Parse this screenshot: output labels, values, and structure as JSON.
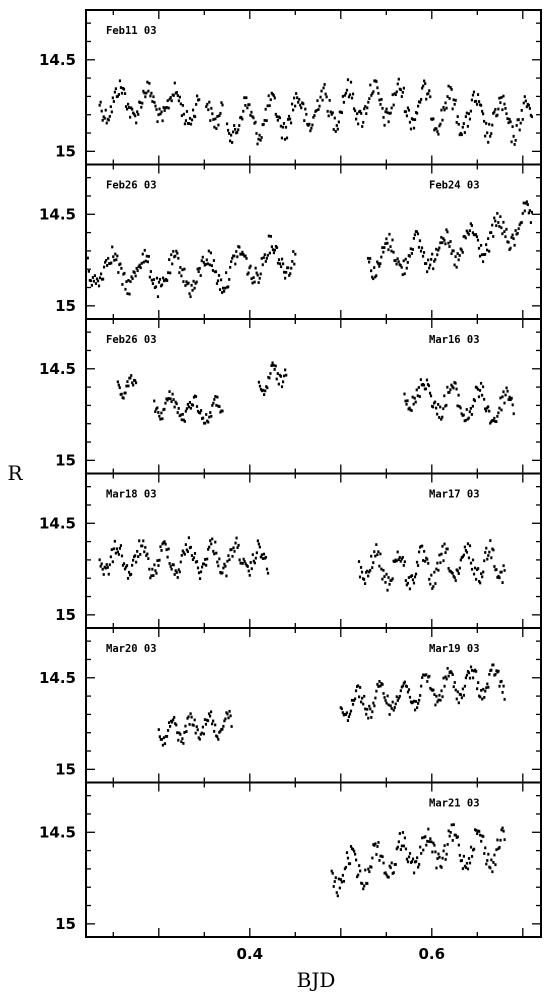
{
  "chart_data": {
    "type": "scatter",
    "xlabel": "BJD",
    "ylabel": "R",
    "xlim": [
      0.22,
      0.72
    ],
    "ylim": [
      15.05,
      14.25
    ],
    "x_ticks": [
      0.4,
      0.6
    ],
    "y_ticks": [
      14.5,
      15
    ],
    "y_tick_labels": [
      "14.5",
      "15"
    ],
    "x_tick_labels": [
      "0.4",
      "0.6"
    ],
    "grid": false,
    "panels": [
      {
        "labels": [
          {
            "text": "Feb11  03",
            "side": "left"
          }
        ],
        "series": [
          {
            "name": "Feb11 03",
            "x_start": 0.235,
            "x_end": 0.37,
            "mean": 14.75,
            "amp": 0.14,
            "period": 0.03,
            "trend": -0.05,
            "gap": [
              0.345,
              0.352
            ]
          },
          {
            "name": "Feb11 03 (b)",
            "x_start": 0.375,
            "x_end": 0.71,
            "mean": 14.78,
            "amp": 0.16,
            "period": 0.028,
            "trend": 0.0,
            "gap": null
          }
        ]
      },
      {
        "labels": [
          {
            "text": "Feb26  03",
            "side": "left"
          },
          {
            "text": "Feb24  03",
            "side": "right"
          }
        ],
        "series": [
          {
            "name": "Feb26 03",
            "x_start": 0.222,
            "x_end": 0.45,
            "mean": 14.78,
            "amp": 0.15,
            "period": 0.035,
            "trend": -0.08,
            "gap": null
          },
          {
            "name": "Feb24 03",
            "x_start": 0.53,
            "x_end": 0.71,
            "mean": 14.65,
            "amp": 0.14,
            "period": 0.03,
            "trend": -0.25,
            "gap": null
          }
        ]
      },
      {
        "labels": [
          {
            "text": "Feb26  03",
            "side": "left"
          },
          {
            "text": "Mar16  03",
            "side": "right"
          }
        ],
        "series": [
          {
            "name": "Feb26 03 (a)",
            "x_start": 0.255,
            "x_end": 0.275,
            "mean": 14.58,
            "amp": 0.08,
            "period": 0.02,
            "trend": 0.0,
            "gap": null
          },
          {
            "name": "Feb26 03 (b)",
            "x_start": 0.295,
            "x_end": 0.37,
            "mean": 14.7,
            "amp": 0.1,
            "period": 0.025,
            "trend": 0.08,
            "gap": null
          },
          {
            "name": "Feb26 03 (c)",
            "x_start": 0.41,
            "x_end": 0.44,
            "mean": 14.58,
            "amp": 0.1,
            "period": 0.02,
            "trend": -0.1,
            "gap": null
          },
          {
            "name": "Mar16 03",
            "x_start": 0.57,
            "x_end": 0.69,
            "mean": 14.65,
            "amp": 0.14,
            "period": 0.03,
            "trend": 0.15,
            "gap": null
          }
        ]
      },
      {
        "labels": [
          {
            "text": "Mar18  03",
            "side": "left"
          },
          {
            "text": "Mar17  03",
            "side": "right"
          }
        ],
        "series": [
          {
            "name": "Mar18 03",
            "x_start": 0.235,
            "x_end": 0.42,
            "mean": 14.7,
            "amp": 0.13,
            "period": 0.026,
            "trend": 0.1,
            "gap": null
          },
          {
            "name": "Mar17 03",
            "x_start": 0.52,
            "x_end": 0.68,
            "mean": 14.72,
            "amp": 0.14,
            "period": 0.025,
            "trend": 0.05,
            "gap": null
          }
        ]
      },
      {
        "labels": [
          {
            "text": "Mar20  03",
            "side": "left"
          },
          {
            "text": "Mar19  03",
            "side": "right"
          }
        ],
        "series": [
          {
            "name": "Mar20 03",
            "x_start": 0.3,
            "x_end": 0.38,
            "mean": 14.8,
            "amp": 0.1,
            "period": 0.02,
            "trend": -0.05,
            "gap": null
          },
          {
            "name": "Mar19 03",
            "x_start": 0.5,
            "x_end": 0.68,
            "mean": 14.58,
            "amp": 0.12,
            "period": 0.025,
            "trend": -0.05,
            "gap": null
          }
        ]
      },
      {
        "labels": [
          {
            "text": "Mar21  03",
            "side": "right"
          }
        ],
        "series": [
          {
            "name": "Mar21 03",
            "x_start": 0.49,
            "x_end": 0.68,
            "mean": 14.65,
            "amp": 0.15,
            "period": 0.028,
            "trend": -0.1,
            "gap": null
          }
        ]
      }
    ]
  }
}
